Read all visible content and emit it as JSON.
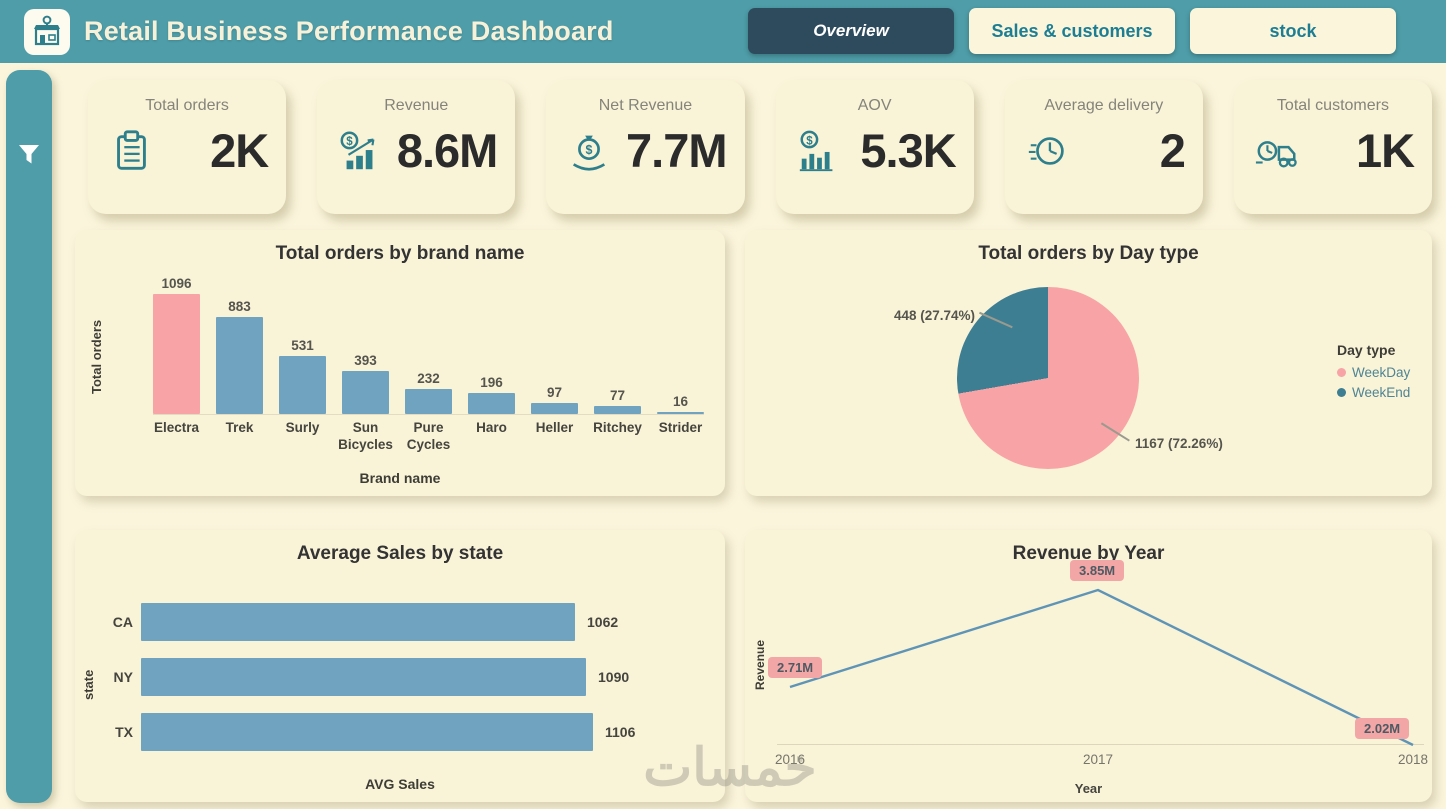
{
  "colors": {
    "header_teal": "#4E9DA8",
    "navy": "#2E4B5E",
    "cream": "#FBF5DC",
    "panel": "#F9F3D8",
    "pink": "#F8A3A5",
    "steel_blue": "#6FA3C0",
    "teal_dark": "#3E7E92",
    "line_blue": "#5E94B5",
    "label_pink": "#F3A6A6",
    "icon_teal": "#2E7F8C"
  },
  "header": {
    "title": "Retail Business Performance Dashboard",
    "tabs": [
      {
        "label": "Overview",
        "active": true
      },
      {
        "label": "Sales & customers",
        "active": false
      },
      {
        "label": "stock",
        "active": false
      }
    ]
  },
  "kpis": [
    {
      "label": "Total orders",
      "value": "2K",
      "icon": "clipboard-icon"
    },
    {
      "label": "Revenue",
      "value": "8.6M",
      "icon": "dollar-growth-icon"
    },
    {
      "label": "Net Revenue",
      "value": "7.7M",
      "icon": "money-bag-hand-icon"
    },
    {
      "label": "AOV",
      "value": "5.3K",
      "icon": "chart-dollar-icon"
    },
    {
      "label": "Average delivery",
      "value": "2",
      "icon": "clock-icon"
    },
    {
      "label": "Total customers",
      "value": "1K",
      "icon": "delivery-truck-icon"
    }
  ],
  "watermark": "خمسات",
  "chart_data": [
    {
      "id": "brand_orders",
      "type": "bar",
      "title": "Total orders by brand name",
      "xlabel": "Brand name",
      "ylabel": "Total orders",
      "categories": [
        "Electra",
        "Trek",
        "Surly",
        "Sun Bicycles",
        "Pure Cycles",
        "Haro",
        "Heller",
        "Ritchey",
        "Strider"
      ],
      "values": [
        1096,
        883,
        531,
        393,
        232,
        196,
        97,
        77,
        16
      ],
      "highlight_index": 0,
      "ylim": [
        0,
        1096
      ],
      "grid": false
    },
    {
      "id": "day_type",
      "type": "pie",
      "title": "Total orders by Day type",
      "legend_title": "Day type",
      "legend_position": "right",
      "labels": [
        "WeekDay",
        "WeekEnd"
      ],
      "values": [
        1167,
        448
      ],
      "percents": [
        "72.26%",
        "27.74%"
      ],
      "callouts": [
        "448 (27.74%)",
        "1167 (72.26%)"
      ]
    },
    {
      "id": "avg_sales_state",
      "type": "bar",
      "orientation": "horizontal",
      "title": "Average Sales by state",
      "xlabel": "AVG Sales",
      "ylabel": "state",
      "categories": [
        "CA",
        "NY",
        "TX"
      ],
      "values": [
        1062,
        1090,
        1106
      ],
      "xlim": [
        0,
        1106
      ],
      "grid": false
    },
    {
      "id": "revenue_year",
      "type": "line",
      "title": "Revenue by Year",
      "xlabel": "Year",
      "ylabel": "Revenue",
      "categories": [
        "2016",
        "2017",
        "2018"
      ],
      "values": [
        2.71,
        3.85,
        2.02
      ],
      "labels": [
        "2.71M",
        "3.85M",
        "2.02M"
      ],
      "unit": "M",
      "grid": false
    }
  ]
}
